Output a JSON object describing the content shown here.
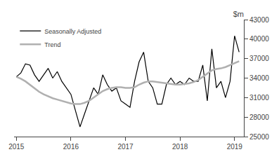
{
  "chart_data": {
    "type": "line",
    "title": "$m",
    "xlim": [
      2014.958,
      2019.17
    ],
    "xticks": [
      2015,
      2016,
      2017,
      2018,
      2019
    ],
    "ylim": [
      25000,
      43000
    ],
    "yticks": [
      25000,
      28000,
      31000,
      34000,
      37000,
      40000,
      43000
    ],
    "grid": false,
    "legend": "upper left",
    "x": [
      2015.0,
      2015.083,
      2015.167,
      2015.25,
      2015.333,
      2015.417,
      2015.5,
      2015.583,
      2015.667,
      2015.75,
      2015.833,
      2015.917,
      2016.0,
      2016.083,
      2016.167,
      2016.25,
      2016.333,
      2016.417,
      2016.5,
      2016.583,
      2016.667,
      2016.75,
      2016.833,
      2016.917,
      2017.0,
      2017.083,
      2017.167,
      2017.25,
      2017.333,
      2017.417,
      2017.5,
      2017.583,
      2017.667,
      2017.75,
      2017.833,
      2017.917,
      2018.0,
      2018.083,
      2018.167,
      2018.25,
      2018.333,
      2018.417,
      2018.5,
      2018.583,
      2018.667,
      2018.75,
      2018.833,
      2018.917,
      2019.0,
      2019.083
    ],
    "series": [
      {
        "name": "Seasonally Adjusted",
        "color": "#000000",
        "values": [
          34200,
          34800,
          36200,
          36000,
          34500,
          33500,
          34500,
          35500,
          34000,
          35000,
          33500,
          32500,
          31500,
          29000,
          26500,
          28500,
          30500,
          32500,
          31500,
          34500,
          33000,
          32000,
          32500,
          30500,
          30000,
          29500,
          33500,
          36500,
          38000,
          33500,
          32500,
          30000,
          30000,
          33000,
          34000,
          33000,
          33500,
          33000,
          34000,
          33500,
          33500,
          36000,
          30500,
          38500,
          32500,
          33500,
          31000,
          33500,
          40500,
          38000
        ]
      },
      {
        "name": "Trend",
        "color": "#b0b0b0",
        "values": [
          34200,
          33900,
          33500,
          33000,
          32400,
          31900,
          31500,
          31200,
          30900,
          30700,
          30500,
          30300,
          30100,
          30000,
          30000,
          30200,
          30500,
          31000,
          31500,
          32000,
          32300,
          32500,
          32600,
          32600,
          32500,
          32500,
          32600,
          33000,
          33300,
          33500,
          33500,
          33400,
          33300,
          33200,
          33100,
          33000,
          33000,
          33100,
          33200,
          33400,
          33700,
          34200,
          34700,
          35200,
          35400,
          35500,
          35700,
          36000,
          36300,
          36600
        ]
      }
    ]
  }
}
